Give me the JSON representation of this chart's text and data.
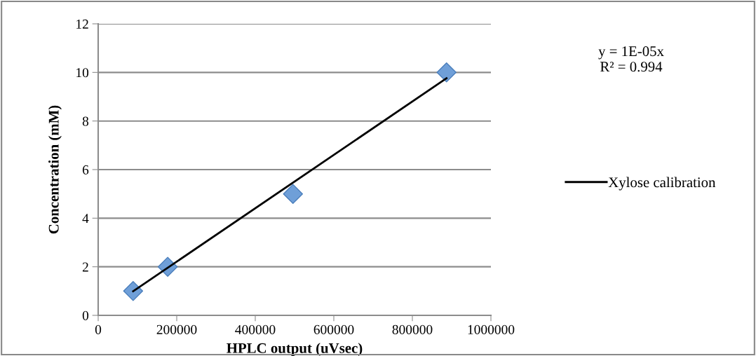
{
  "chart_data": {
    "type": "scatter",
    "xlabel": "HPLC output (uVsec)",
    "ylabel": "Concentration (mM)",
    "series": [
      {
        "color": "#6f9fd8",
        "marker": "diamond",
        "x": [
          89000,
          177000,
          496000,
          887000
        ],
        "values": [
          1,
          2,
          5,
          10
        ]
      },
      {
        "type": "line",
        "name": "Xylose calibration",
        "color": "#000000",
        "marker": "none",
        "x": [
          89000,
          887000
        ],
        "values": [
          0.99,
          9.76
        ]
      }
    ],
    "annotations": [
      "y = 1E-05x",
      "R² = 0.994"
    ],
    "xlim": [
      0,
      1000000
    ],
    "xticks": [
      0,
      200000,
      400000,
      600000,
      800000,
      1000000
    ],
    "ylim": [
      0,
      12
    ],
    "yticks": [
      0,
      2,
      4,
      6,
      8,
      10,
      12
    ],
    "grid": "y",
    "legend": "right"
  }
}
